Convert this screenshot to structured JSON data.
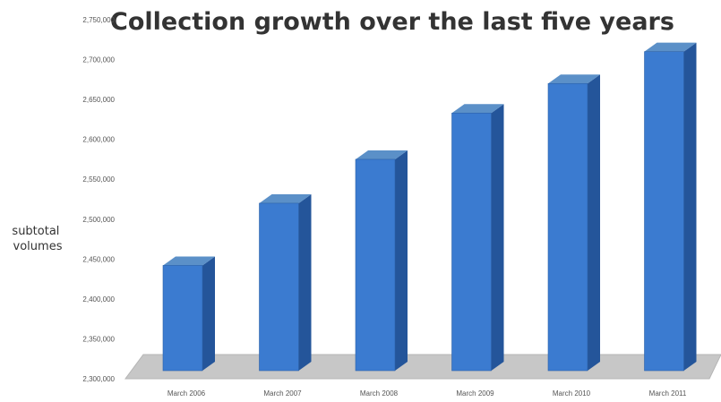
{
  "chart_data": {
    "type": "bar",
    "title": "Collection growth over the last five years",
    "ylabel": "subtotal volumes",
    "ylabel_lines": [
      "subtotal",
      "volumes"
    ],
    "xlabel": "",
    "categories": [
      "March 2006",
      "March 2007",
      "March 2008",
      "March 2009",
      "March 2010",
      "March 2011"
    ],
    "values": [
      2442000,
      2520000,
      2575000,
      2633000,
      2670000,
      2710000
    ],
    "ylim": [
      2300000,
      2750000
    ],
    "yticks": [
      2300000,
      2350000,
      2400000,
      2450000,
      2500000,
      2550000,
      2600000,
      2650000,
      2700000,
      2750000
    ],
    "ytick_labels": [
      "2,300,000",
      "2,350,000",
      "2,400,000",
      "2,450,000",
      "2,500,000",
      "2,550,000",
      "2,600,000",
      "2,650,000",
      "2,700,000",
      "2,750,000"
    ],
    "grid": false,
    "legend": "none",
    "style": "3d-column",
    "colors": {
      "bar_front": "#3b7bd0",
      "bar_side": "#24559a",
      "bar_top": "#5b90c8",
      "floor": "#c7c7c7"
    }
  }
}
